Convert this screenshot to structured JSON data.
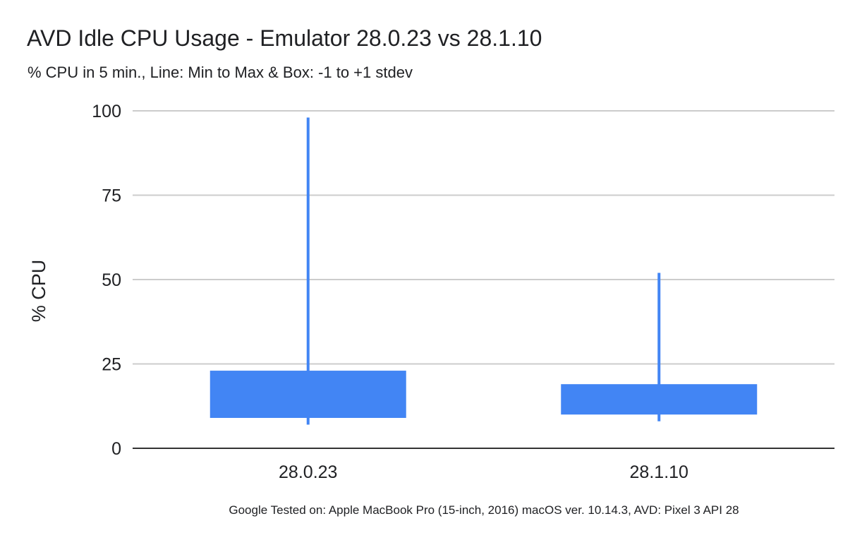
{
  "chart_data": {
    "type": "candlestick",
    "title": "AVD Idle CPU Usage - Emulator 28.0.23 vs 28.1.10",
    "subtitle": "% CPU in 5 min., Line: Min to Max & Box: -1 to +1 stdev",
    "xlabel": "",
    "ylabel": "% CPU",
    "ylim": [
      0,
      100
    ],
    "yticks": [
      "0",
      "25",
      "50",
      "75",
      "100"
    ],
    "grid": true,
    "legend": "none",
    "color": "#4285f4",
    "categories": [
      "28.0.23",
      "28.1.10"
    ],
    "series": [
      {
        "min": 7,
        "box_low": 9,
        "box_high": 23,
        "max": 98
      },
      {
        "min": 8,
        "box_low": 10,
        "box_high": 19,
        "max": 52
      }
    ],
    "footnote": "Google Tested on: Apple MacBook Pro (15-inch, 2016) macOS ver. 10.14.3, AVD: Pixel 3 API 28"
  }
}
